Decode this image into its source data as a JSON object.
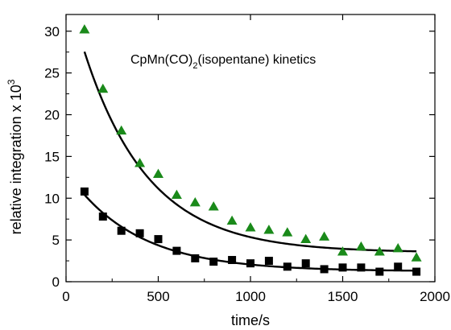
{
  "chart_data": {
    "type": "scatter",
    "title": "CpMn(CO)",
    "title_subscript": "2",
    "title_suffix": "(isopentane) kinetics",
    "xlabel": "time/s",
    "ylabel": "relative integration x 10",
    "ylabel_exponent": "3",
    "xlim": [
      0,
      2000
    ],
    "ylim": [
      0,
      32
    ],
    "x_ticks": [
      0,
      500,
      1000,
      1500,
      2000
    ],
    "y_ticks": [
      0,
      5,
      10,
      15,
      20,
      25,
      30
    ],
    "grid": false,
    "series": [
      {
        "marker": "triangle",
        "color": "#1a8a1a",
        "x": [
          100,
          200,
          300,
          400,
          500,
          600,
          700,
          800,
          900,
          1000,
          1100,
          1200,
          1300,
          1400,
          1500,
          1600,
          1700,
          1800,
          1900
        ],
        "y": [
          30.2,
          23.1,
          18.1,
          14.2,
          12.9,
          10.4,
          9.5,
          9.0,
          7.3,
          6.5,
          6.2,
          5.9,
          5.1,
          5.4,
          3.6,
          4.2,
          3.6,
          4.0,
          2.9
        ]
      },
      {
        "marker": "square",
        "color": "#000000",
        "x": [
          100,
          200,
          300,
          400,
          500,
          600,
          700,
          800,
          900,
          1000,
          1100,
          1200,
          1300,
          1400,
          1500,
          1600,
          1700,
          1800,
          1900
        ],
        "y": [
          10.8,
          7.8,
          6.1,
          5.8,
          5.1,
          3.7,
          2.8,
          2.4,
          2.6,
          2.2,
          2.5,
          1.8,
          2.2,
          1.5,
          1.7,
          1.7,
          1.2,
          1.8,
          1.2
        ]
      }
    ],
    "fits": [
      {
        "color": "#000000",
        "a": 3.5,
        "b": 32.0,
        "k": 0.00286
      },
      {
        "color": "#000000",
        "a": 1.25,
        "b": 12.0,
        "k": 0.0027
      }
    ]
  }
}
